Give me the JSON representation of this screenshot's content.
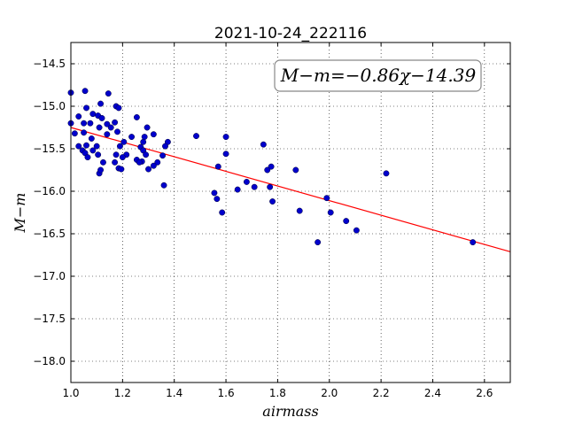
{
  "chart_data": {
    "type": "scatter",
    "title": "2021-10-24_222116",
    "xlabel": "airmass",
    "ylabel": "M−m",
    "annotation": "M−m=−0.86χ−14.39",
    "xlim": [
      1.0,
      2.7
    ],
    "ylim": [
      -18.25,
      -14.25
    ],
    "y_inverted": true,
    "x_ticks": [
      "1.0",
      "1.2",
      "1.4",
      "1.6",
      "1.8",
      "2.0",
      "2.2",
      "2.4",
      "2.6"
    ],
    "y_ticks": [
      "−14.5",
      "−15.0",
      "−15.5",
      "−16.0",
      "−16.5",
      "−17.0",
      "−17.5",
      "−18.0"
    ],
    "grid": true,
    "colors": {
      "points": "#0000cc",
      "fit_line": "#ff0000"
    },
    "fit": {
      "slope": -0.86,
      "intercept": -14.39
    },
    "points": [
      [
        1.0,
        -14.84
      ],
      [
        1.055,
        -14.82
      ],
      [
        1.145,
        -14.85
      ],
      [
        1.115,
        -14.97
      ],
      [
        1.06,
        -15.02
      ],
      [
        1.085,
        -15.09
      ],
      [
        1.175,
        -15.0
      ],
      [
        1.185,
        -15.02
      ],
      [
        1.03,
        -15.12
      ],
      [
        1.105,
        -15.11
      ],
      [
        1.12,
        -15.14
      ],
      [
        1.255,
        -15.13
      ],
      [
        1.0,
        -15.2
      ],
      [
        1.05,
        -15.2
      ],
      [
        1.075,
        -15.2
      ],
      [
        1.14,
        -15.21
      ],
      [
        1.17,
        -15.19
      ],
      [
        1.11,
        -15.25
      ],
      [
        1.155,
        -15.25
      ],
      [
        1.295,
        -15.25
      ],
      [
        1.015,
        -15.32
      ],
      [
        1.05,
        -15.31
      ],
      [
        1.14,
        -15.33
      ],
      [
        1.18,
        -15.3
      ],
      [
        1.32,
        -15.33
      ],
      [
        1.08,
        -15.38
      ],
      [
        1.235,
        -15.36
      ],
      [
        1.285,
        -15.36
      ],
      [
        1.485,
        -15.35
      ],
      [
        1.6,
        -15.36
      ],
      [
        1.205,
        -15.42
      ],
      [
        1.28,
        -15.42
      ],
      [
        1.375,
        -15.42
      ],
      [
        1.03,
        -15.47
      ],
      [
        1.06,
        -15.46
      ],
      [
        1.1,
        -15.47
      ],
      [
        1.19,
        -15.47
      ],
      [
        1.27,
        -15.48
      ],
      [
        1.365,
        -15.47
      ],
      [
        1.745,
        -15.45
      ],
      [
        1.045,
        -15.52
      ],
      [
        1.085,
        -15.52
      ],
      [
        1.215,
        -15.57
      ],
      [
        1.28,
        -15.52
      ],
      [
        1.055,
        -15.55
      ],
      [
        1.105,
        -15.57
      ],
      [
        1.29,
        -15.57
      ],
      [
        1.355,
        -15.58
      ],
      [
        1.6,
        -15.56
      ],
      [
        1.065,
        -15.6
      ],
      [
        1.175,
        -15.57
      ],
      [
        1.2,
        -15.6
      ],
      [
        1.255,
        -15.63
      ],
      [
        1.275,
        -15.65
      ],
      [
        1.125,
        -15.66
      ],
      [
        1.17,
        -15.66
      ],
      [
        1.265,
        -15.66
      ],
      [
        1.335,
        -15.66
      ],
      [
        1.32,
        -15.7
      ],
      [
        1.57,
        -15.71
      ],
      [
        1.775,
        -15.71
      ],
      [
        1.185,
        -15.73
      ],
      [
        1.195,
        -15.74
      ],
      [
        1.3,
        -15.74
      ],
      [
        1.76,
        -15.75
      ],
      [
        1.87,
        -15.75
      ],
      [
        1.11,
        -15.79
      ],
      [
        1.115,
        -15.75
      ],
      [
        2.22,
        -15.79
      ],
      [
        1.68,
        -15.89
      ],
      [
        1.36,
        -15.93
      ],
      [
        1.645,
        -15.98
      ],
      [
        1.71,
        -15.95
      ],
      [
        1.77,
        -15.95
      ],
      [
        1.555,
        -16.02
      ],
      [
        1.565,
        -16.09
      ],
      [
        1.99,
        -16.08
      ],
      [
        1.78,
        -16.12
      ],
      [
        1.885,
        -16.23
      ],
      [
        1.585,
        -16.25
      ],
      [
        2.005,
        -16.25
      ],
      [
        2.065,
        -16.35
      ],
      [
        2.105,
        -16.46
      ],
      [
        1.955,
        -16.6
      ],
      [
        2.555,
        -16.6
      ]
    ]
  }
}
